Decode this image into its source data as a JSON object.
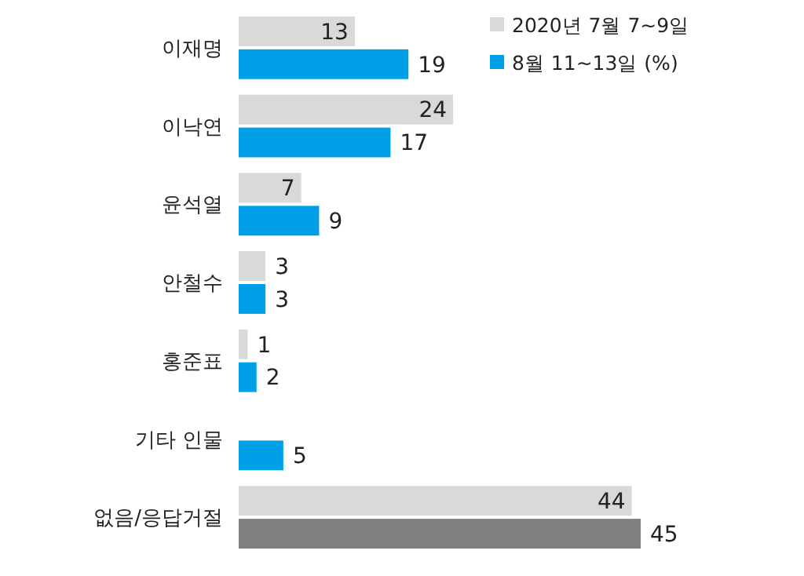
{
  "chart_data": {
    "type": "bar",
    "orientation": "horizontal",
    "categories": [
      "이재명",
      "이낙연",
      "윤석열",
      "안철수",
      "홍준표",
      "기타 인물",
      "없음/응답거절"
    ],
    "series": [
      {
        "name": "2020년 7월 7~9일",
        "color": "#d9d9d9",
        "values": [
          13,
          24,
          7,
          3,
          1,
          null,
          44
        ]
      },
      {
        "name": "8월 11~13일 (%)",
        "color": "#00a0e9",
        "colors": [
          "#00a0e9",
          "#00a0e9",
          "#00a0e9",
          "#00a0e9",
          "#00a0e9",
          "#00a0e9",
          "#7f7f7f"
        ],
        "values": [
          19,
          17,
          9,
          3,
          2,
          5,
          45
        ]
      }
    ],
    "data_labels": true,
    "legend": "top right"
  }
}
